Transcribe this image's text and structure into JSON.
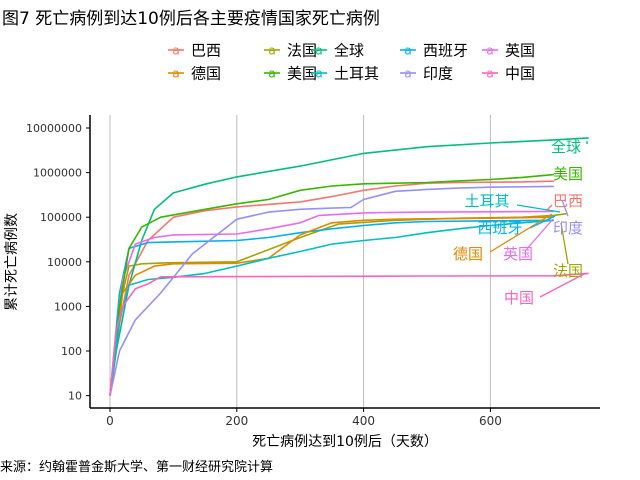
{
  "title": "图7 死亡病例到达10例后各主要疫情国家死亡病例",
  "source": "来源：约翰霍普金斯大学、第一财经研究院计算",
  "colors": {
    "grid": "#bdbdbd",
    "axis": "#000000",
    "text": "#000000"
  },
  "chart_data": {
    "type": "line",
    "title": "图7 死亡病例到达10例后各主要疫情国家死亡病例",
    "xlabel": "死亡病例达到10例后（天数）",
    "ylabel": "累计死亡病例数",
    "xlim": [
      -25,
      760
    ],
    "ylim": [
      10,
      10000000
    ],
    "y_scale": "log",
    "x_ticks": [
      0,
      200,
      400,
      600
    ],
    "y_ticks": [
      10,
      100,
      1000,
      10000,
      100000,
      1000000,
      10000000
    ],
    "y_tick_labels": [
      "10",
      "100",
      "1000",
      "10000",
      "100000",
      "1000000",
      "10000000"
    ],
    "grid": "vertical",
    "legend_position": "top",
    "legend_items": [
      "巴西",
      "法国",
      "全球",
      "西班牙",
      "英国",
      "德国",
      "美国",
      "土耳其",
      "印度",
      "中国"
    ],
    "series": [
      {
        "name": "巴西",
        "color": "#F8766D",
        "x": [
          0,
          15,
          30,
          60,
          100,
          150,
          200,
          300,
          350,
          400,
          450,
          500,
          550,
          600,
          650,
          700
        ],
        "y": [
          10,
          400,
          5000,
          30000,
          100000,
          140000,
          170000,
          220000,
          290000,
          400000,
          500000,
          580000,
          600000,
          610000,
          620000,
          640000
        ],
        "end_label": "巴西"
      },
      {
        "name": "法国",
        "color": "#A3A500",
        "x": [
          0,
          15,
          30,
          50,
          90,
          200,
          300,
          360,
          450,
          550,
          650,
          700,
          720
        ],
        "y": [
          10,
          1000,
          8000,
          9000,
          9500,
          10000,
          35000,
          70000,
          85000,
          95000,
          100000,
          110000,
          120000
        ],
        "end_label": "法国"
      },
      {
        "name": "全球",
        "color": "#00BF7D",
        "x": [
          0,
          10,
          30,
          50,
          70,
          100,
          150,
          200,
          300,
          400,
          500,
          600,
          700,
          755
        ],
        "y": [
          10,
          100,
          3000,
          30000,
          150000,
          350000,
          550000,
          800000,
          1400000,
          2700000,
          3800000,
          4600000,
          5400000,
          6000000
        ],
        "end_label": "全球"
      },
      {
        "name": "西班牙",
        "color": "#00B0F6",
        "x": [
          0,
          15,
          30,
          60,
          100,
          200,
          250,
          300,
          350,
          400,
          450,
          500,
          600,
          700
        ],
        "y": [
          10,
          2000,
          20000,
          27000,
          28000,
          30000,
          35000,
          45000,
          55000,
          65000,
          75000,
          80000,
          83000,
          85000
        ],
        "end_label": "西班牙"
      },
      {
        "name": "英国",
        "color": "#E76BF3",
        "x": [
          0,
          20,
          40,
          70,
          100,
          200,
          250,
          300,
          330,
          400,
          450,
          500,
          600,
          700
        ],
        "y": [
          10,
          4000,
          25000,
          35000,
          40000,
          42000,
          55000,
          75000,
          110000,
          125000,
          128000,
          130000,
          132000,
          135000
        ],
        "end_label": "英国"
      },
      {
        "name": "德国",
        "color": "#E58700",
        "x": [
          0,
          20,
          40,
          70,
          100,
          200,
          250,
          300,
          350,
          400,
          450,
          500,
          600,
          700
        ],
        "y": [
          10,
          2000,
          5000,
          8000,
          9000,
          9300,
          12000,
          40000,
          75000,
          85000,
          90000,
          92000,
          95000,
          100000
        ],
        "end_label": "德国"
      },
      {
        "name": "美国",
        "color": "#39B600",
        "x": [
          0,
          15,
          30,
          50,
          80,
          150,
          200,
          250,
          300,
          350,
          400,
          450,
          500,
          550,
          600,
          650,
          700
        ],
        "y": [
          10,
          1000,
          20000,
          60000,
          100000,
          150000,
          200000,
          250000,
          400000,
          500000,
          560000,
          580000,
          600000,
          650000,
          700000,
          780000,
          900000
        ],
        "end_label": "美国"
      },
      {
        "name": "土耳其",
        "color": "#00BFC4",
        "x": [
          0,
          15,
          30,
          60,
          100,
          150,
          200,
          250,
          300,
          350,
          400,
          450,
          500,
          550,
          600,
          650,
          700
        ],
        "y": [
          10,
          500,
          3000,
          4000,
          4500,
          5500,
          8000,
          12000,
          17000,
          25000,
          30000,
          35000,
          45000,
          55000,
          65000,
          75000,
          85000
        ],
        "end_label": "土耳其"
      },
      {
        "name": "印度",
        "color": "#9590FF",
        "x": [
          0,
          15,
          40,
          80,
          130,
          200,
          250,
          300,
          350,
          380,
          400,
          450,
          500,
          550,
          600,
          650,
          700
        ],
        "y": [
          10,
          100,
          500,
          2000,
          15000,
          90000,
          130000,
          150000,
          160000,
          165000,
          250000,
          380000,
          420000,
          450000,
          470000,
          480000,
          490000
        ],
        "end_label": "印度"
      },
      {
        "name": "中国",
        "color": "#FF62BC",
        "x": [
          0,
          10,
          20,
          40,
          60,
          80,
          300,
          500,
          700,
          755
        ],
        "y": [
          10,
          300,
          1000,
          2500,
          3200,
          4600,
          4700,
          4800,
          4850,
          5500
        ],
        "end_label": "中国"
      }
    ]
  }
}
